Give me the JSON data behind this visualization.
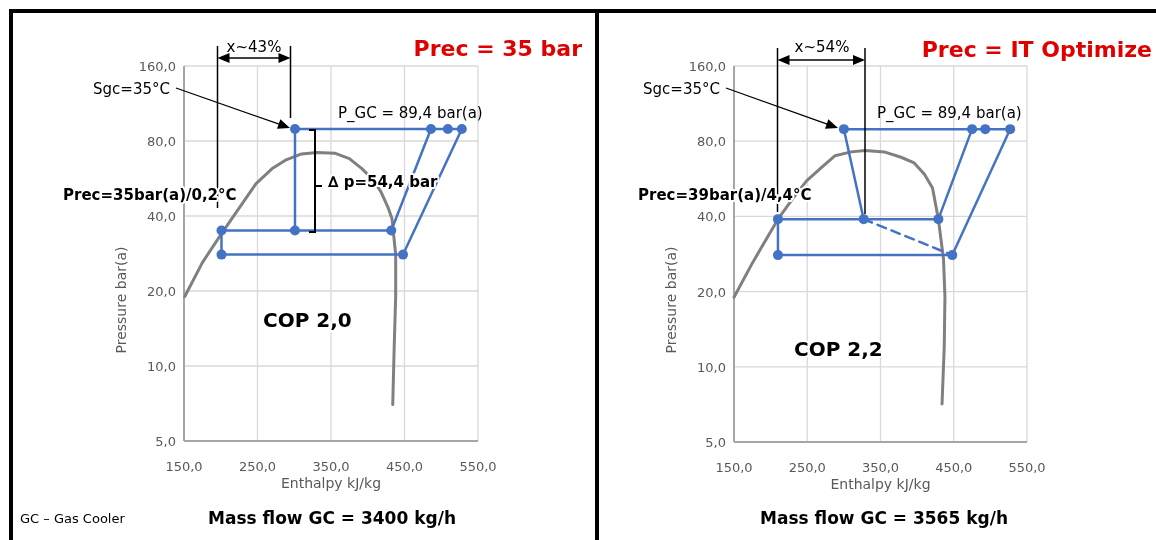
{
  "chart_data": [
    {
      "type": "line",
      "title": "Prec = 35 bar",
      "xlabel": "Enthalpy kJ/kg",
      "ylabel": "Pressure bar(a)",
      "log": "y",
      "grid": true,
      "marker": "circle",
      "xlim": [
        150,
        550
      ],
      "xticks": [
        {
          "value": 150,
          "label": "150,0"
        },
        {
          "value": 250,
          "label": "250,0"
        },
        {
          "value": 350,
          "label": "350,0"
        },
        {
          "value": 450,
          "label": "450,0"
        },
        {
          "value": 550,
          "label": "550,0"
        }
      ],
      "ylim": [
        5,
        160
      ],
      "yticks": [
        {
          "value": 5,
          "label": "5,0"
        },
        {
          "value": 10,
          "label": "10,0"
        },
        {
          "value": 20,
          "label": "20,0"
        },
        {
          "value": 40,
          "label": "40,0"
        },
        {
          "value": 80,
          "label": "80,0"
        },
        {
          "value": 160,
          "label": "160,0"
        }
      ],
      "annotations": [
        "x~43%",
        "Sgc=35°C",
        "P_GC = 89,4 bar(a)",
        "Prec=35bar(a)/0,2°C",
        "∆ p=54,4 bar",
        "COP 2,0",
        "Mass flow GC = 3400 kg/h",
        "GC – Gas Cooler"
      ],
      "series": [
        {
          "color": "#808080",
          "marker": "none",
          "x": [
            151,
            175,
            201,
            225,
            248,
            270,
            288,
            310,
            331,
            355,
            375,
            392,
            407,
            418,
            428,
            433,
            438,
            438,
            436,
            434
          ],
          "values": [
            19,
            26,
            34,
            43,
            54,
            62,
            67,
            71,
            72,
            71.5,
            68,
            62,
            56,
            50,
            43,
            39,
            28,
            19,
            12,
            7
          ]
        },
        {
          "color": "#4472c4",
          "x": [
            301,
            486,
            509,
            528
          ],
          "values": [
            89.4,
            89.4,
            89.4,
            89.4
          ]
        },
        {
          "color": "#4472c4",
          "x": [
            201,
            301,
            432
          ],
          "values": [
            35,
            35,
            35
          ]
        },
        {
          "color": "#4472c4",
          "x": [
            201,
            448
          ],
          "values": [
            28,
            28
          ]
        },
        {
          "color": "#4472c4",
          "marker": "none",
          "x": [
            201,
            201
          ],
          "values": [
            35,
            28
          ]
        },
        {
          "color": "#4472c4",
          "marker": "none",
          "x": [
            301,
            301
          ],
          "values": [
            89.4,
            35
          ]
        },
        {
          "color": "#4472c4",
          "marker": "none",
          "x": [
            432,
            486
          ],
          "values": [
            35,
            89.4
          ]
        },
        {
          "color": "#4472c4",
          "marker": "none",
          "x": [
            448,
            528
          ],
          "values": [
            28,
            89.4
          ]
        }
      ]
    },
    {
      "type": "line",
      "title": "Prec = IT Optimize",
      "xlabel": "Enthalpy kJ/kg",
      "ylabel": "Pressure bar(a)",
      "log": "y",
      "grid": true,
      "marker": "circle",
      "xlim": [
        150,
        550
      ],
      "xticks": [
        {
          "value": 150,
          "label": "150,0"
        },
        {
          "value": 250,
          "label": "250,0"
        },
        {
          "value": 350,
          "label": "350,0"
        },
        {
          "value": 450,
          "label": "450,0"
        },
        {
          "value": 550,
          "label": "550,0"
        }
      ],
      "ylim": [
        5,
        160
      ],
      "yticks": [
        {
          "value": 5,
          "label": "5,0"
        },
        {
          "value": 10,
          "label": "10,0"
        },
        {
          "value": 20,
          "label": "20,0"
        },
        {
          "value": 40,
          "label": "40,0"
        },
        {
          "value": 80,
          "label": "80,0"
        },
        {
          "value": 160,
          "label": "160,0"
        }
      ],
      "annotations": [
        "x~54%",
        "Sgc=35°C",
        "P_GC = 89,4 bar(a)",
        "Prec=39bar(a)/4,4°C",
        "COP 2,2",
        "Mass flow GC = 3565 kg/h"
      ],
      "series": [
        {
          "color": "#808080",
          "marker": "none",
          "x": [
            150,
            175,
            210,
            230,
            249,
            270,
            288,
            310,
            329,
            355,
            378,
            396,
            410,
            421,
            429,
            436,
            438,
            437,
            434
          ],
          "values": [
            19,
            26,
            39,
            47,
            55.5,
            63,
            70,
            72.5,
            73.5,
            72.5,
            69,
            65.5,
            59,
            52,
            39,
            27,
            19,
            12,
            7.1
          ]
        },
        {
          "color": "#4472c4",
          "x": [
            300,
            475,
            493,
            527
          ],
          "values": [
            89.4,
            89.4,
            89.4,
            89.4
          ]
        },
        {
          "color": "#4472c4",
          "x": [
            210,
            327,
            429
          ],
          "values": [
            39,
            39,
            39
          ]
        },
        {
          "color": "#4472c4",
          "x": [
            210,
            448
          ],
          "values": [
            28,
            28
          ]
        },
        {
          "color": "#4472c4",
          "marker": "none",
          "x": [
            210,
            210
          ],
          "values": [
            39,
            28
          ]
        },
        {
          "color": "#4472c4",
          "marker": "none",
          "x": [
            300,
            327
          ],
          "values": [
            89.4,
            39
          ]
        },
        {
          "color": "#4472c4",
          "marker": "none",
          "x": [
            429,
            475
          ],
          "values": [
            39,
            89.4
          ]
        },
        {
          "color": "#4472c4",
          "marker": "none",
          "x": [
            448,
            527
          ],
          "values": [
            28,
            89.4
          ]
        },
        {
          "color": "#4472c4",
          "marker": "none",
          "line_style": "dashed",
          "x": [
            327,
            448
          ],
          "values": [
            39,
            28
          ]
        }
      ]
    }
  ]
}
